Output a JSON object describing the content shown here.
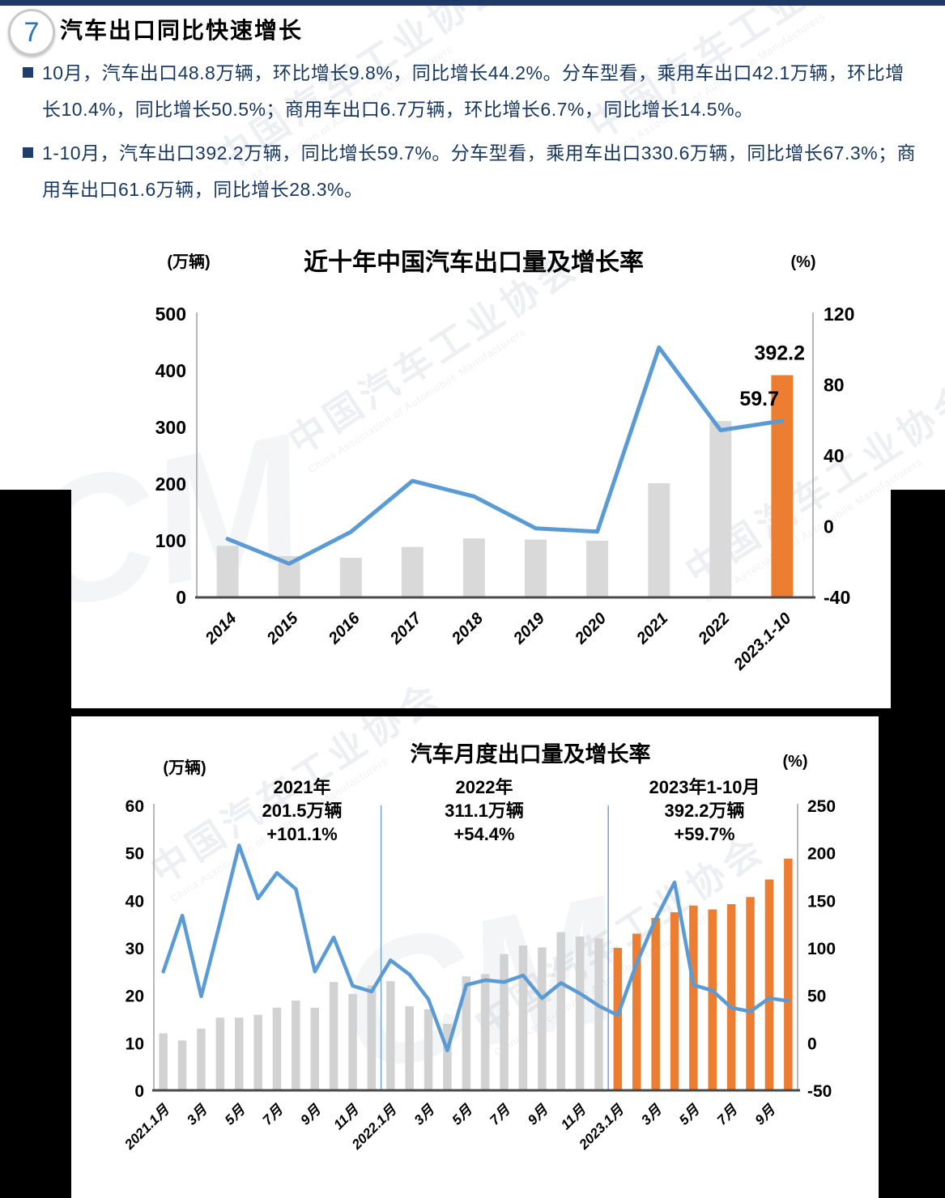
{
  "page": {
    "section_number": "7",
    "title": "汽车出口同比快速增长",
    "bullets": [
      "10月，汽车出口48.8万辆，环比增长9.8%，同比增长44.2%。分车型看，乘用车出口42.1万辆，环比增长10.4%，同比增长50.5%；商用车出口6.7万辆，环比增长6.7%，同比增长14.5%。",
      "1-10月，汽车出口392.2万辆，同比增长59.7%。分车型看，乘用车出口330.6万辆，同比增长67.3%；商用车出口61.6万辆，同比增长28.3%。"
    ],
    "watermark": {
      "cn": "中国汽车工业协会",
      "en": "China Association of Automobile Manufacturers",
      "logo_initials": "CM"
    }
  },
  "chart_data": [
    {
      "type": "bar+line",
      "title": "近十年中国汽车出口量及增长率",
      "legend_position": "none",
      "grid": false,
      "left_axis": {
        "label": "(万辆)",
        "min": 0,
        "max": 500,
        "ticks": [
          500,
          400,
          300,
          200,
          100,
          0
        ]
      },
      "right_axis": {
        "label": "(%)",
        "min": -40,
        "max": 120,
        "ticks": [
          120,
          80,
          40,
          0,
          -40
        ]
      },
      "categories": [
        "2014",
        "2015",
        "2016",
        "2017",
        "2018",
        "2019",
        "2020",
        "2021",
        "2022",
        "2023.1-10"
      ],
      "x_tick_labels": [
        "2014",
        "2015",
        "2016",
        "2017",
        "2018",
        "2019",
        "2020",
        "2021",
        "2022",
        "2023.1-10"
      ],
      "x_tick_step": 1,
      "series": [
        {
          "name": "出口量(万辆)",
          "type": "bar"
        },
        {
          "name": "增长率(%)",
          "type": "line"
        }
      ],
      "bar_values": [
        91,
        73,
        70,
        89,
        104,
        102,
        100,
        201.5,
        311.1,
        392.2
      ],
      "line_values": [
        -7,
        -21,
        -3,
        25.8,
        17,
        -1,
        -2.9,
        101.1,
        54.4,
        59.7
      ],
      "highlight_from_index": 9,
      "value_labels": [
        {
          "text": "392.2",
          "series": "bar",
          "at": "2023.1-10"
        },
        {
          "text": "59.7",
          "series": "line",
          "at": "2023.1-10"
        }
      ],
      "colors": {
        "bar": "#D9D9D9",
        "highlight_bar": "#ED7D31",
        "line": "#5B9BD5"
      }
    },
    {
      "type": "bar+line",
      "title": "汽车月度出口量及增长率",
      "legend_position": "none",
      "grid": false,
      "left_axis": {
        "label": "(万辆)",
        "min": 0,
        "max": 60,
        "ticks": [
          60,
          50,
          40,
          30,
          20,
          10,
          0
        ]
      },
      "right_axis": {
        "label": "(%)",
        "min": -50,
        "max": 250,
        "ticks": [
          250,
          200,
          150,
          100,
          50,
          0,
          -50
        ]
      },
      "categories": [
        "2021.1",
        "2021.2",
        "2021.3",
        "2021.4",
        "2021.5",
        "2021.6",
        "2021.7",
        "2021.8",
        "2021.9",
        "2021.10",
        "2021.11",
        "2021.12",
        "2022.1",
        "2022.2",
        "2022.3",
        "2022.4",
        "2022.5",
        "2022.6",
        "2022.7",
        "2022.8",
        "2022.9",
        "2022.10",
        "2022.11",
        "2022.12",
        "2023.1",
        "2023.2",
        "2023.3",
        "2023.4",
        "2023.5",
        "2023.6",
        "2023.7",
        "2023.8",
        "2023.9",
        "2023.10"
      ],
      "x_tick_labels": [
        "2021.1月",
        "3月",
        "5月",
        "7月",
        "9月",
        "11月",
        "2022.1月",
        "3月",
        "5月",
        "7月",
        "9月",
        "11月",
        "2023.1月",
        "3月",
        "5月",
        "7月",
        "9月"
      ],
      "x_tick_step": 2,
      "series": [
        {
          "name": "月度出口量(万辆)",
          "type": "bar"
        },
        {
          "name": "同比增长率(%)",
          "type": "line"
        }
      ],
      "bar_values": [
        12,
        10.5,
        13,
        15.3,
        15.3,
        15.9,
        17.4,
        18.9,
        17.4,
        22.8,
        20.3,
        22.1,
        23,
        17.7,
        17.1,
        14,
        24,
        24.5,
        28.7,
        30.5,
        30.1,
        33.3,
        32.4,
        32,
        30,
        33,
        36.3,
        37.5,
        38.9,
        38.1,
        39.2,
        40.7,
        44.4,
        48.8
      ],
      "line_values": [
        75,
        134,
        49,
        127,
        208,
        152,
        179,
        162,
        75,
        111,
        60,
        54,
        87,
        72,
        46,
        -8,
        61,
        66,
        64,
        71,
        47,
        63,
        52,
        39,
        29,
        84,
        130,
        169,
        61,
        55,
        37,
        33,
        47,
        44.2
      ],
      "highlight_from_index": 24,
      "divider_positions": [
        12,
        24
      ],
      "period_annotations": [
        {
          "lines": [
            "2021年",
            "201.5万辆",
            "+101.1%"
          ]
        },
        {
          "lines": [
            "2022年",
            "311.1万辆",
            "+54.4%"
          ]
        },
        {
          "lines": [
            "2023年1-10月",
            "392.2万辆",
            "+59.7%"
          ]
        }
      ],
      "colors": {
        "bar": "#D2D2D2",
        "highlight_bar": "#ED7D31",
        "line": "#5B9BD5",
        "divider": "#70A3D7"
      }
    }
  ]
}
